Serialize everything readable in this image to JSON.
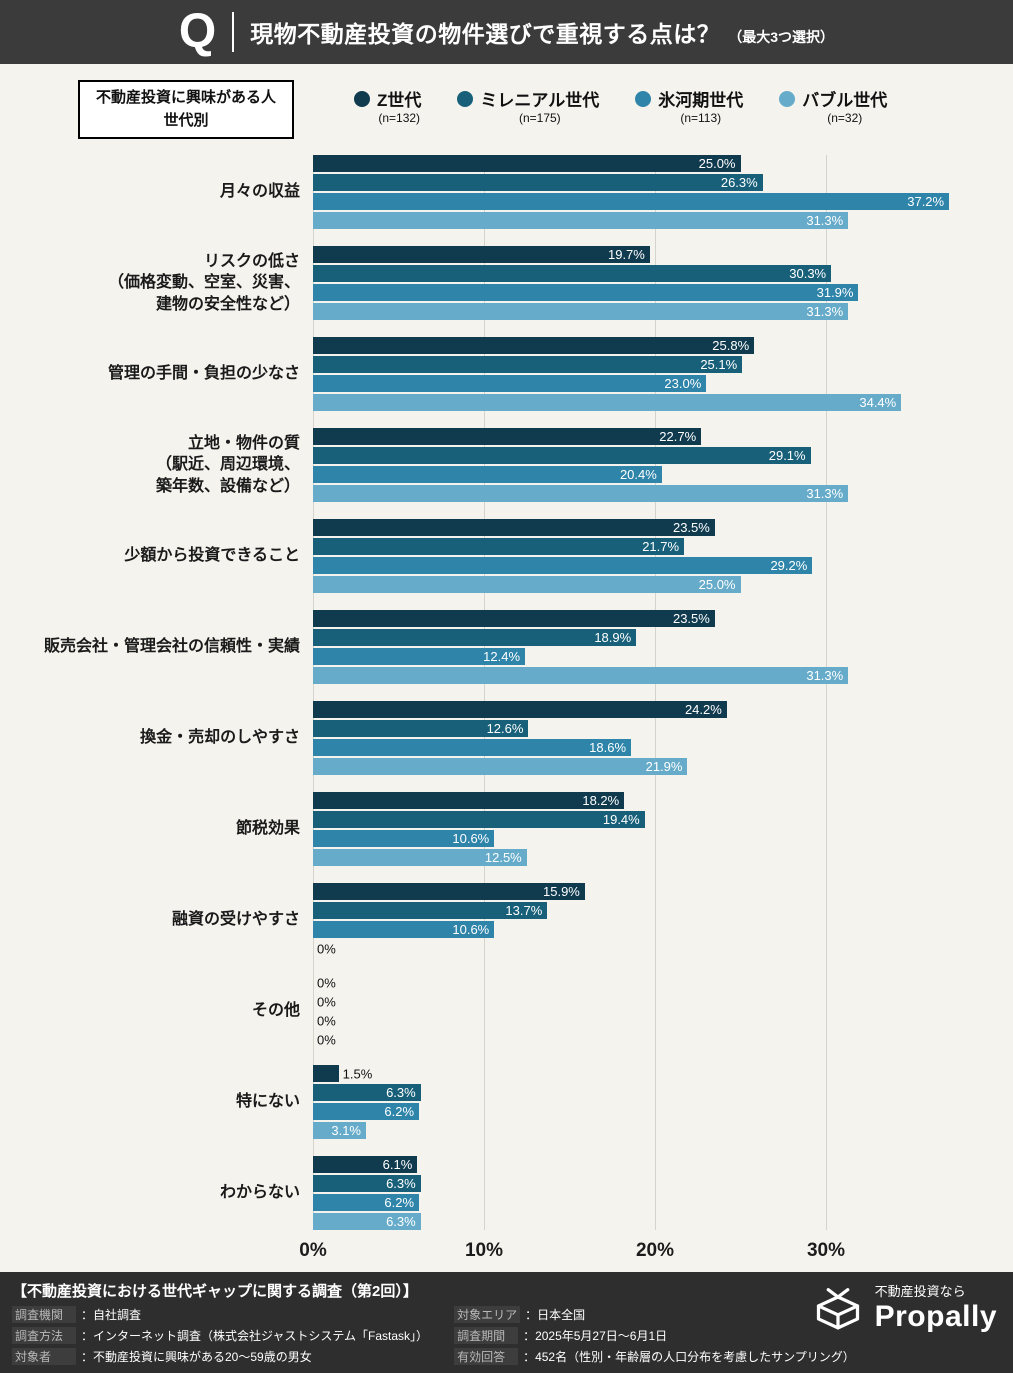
{
  "header": {
    "q_mark": "Q",
    "title": "現物不動産投資の物件選びで重視する点は？",
    "subtitle": "（最大3つ選択）"
  },
  "audience_box": {
    "line1": "不動産投資に興味がある人",
    "line2": "世代別"
  },
  "legend": {
    "items": [
      {
        "label": "Z世代",
        "n": "(n=132)"
      },
      {
        "label": "ミレニアル世代",
        "n": "(n=175)"
      },
      {
        "label": "氷河期世代",
        "n": "(n=113)"
      },
      {
        "label": "バブル世代",
        "n": "(n=32)"
      }
    ]
  },
  "chart_data": {
    "type": "bar",
    "orientation": "horizontal",
    "title": "現物不動産投資の物件選びで重視する点は？（最大3つ選択）",
    "x_axis": {
      "ticks": [
        "0%",
        "10%",
        "20%",
        "30%"
      ],
      "tick_values": [
        0,
        10,
        20,
        30
      ],
      "max": 40,
      "unit": "%"
    },
    "grid": true,
    "series_names": [
      "Z世代",
      "ミレニアル世代",
      "氷河期世代",
      "バブル世代"
    ],
    "series_colors": [
      "#103b4f",
      "#186079",
      "#2e84a9",
      "#66abc9"
    ],
    "categories": [
      {
        "label_lines": [
          "月々の収益"
        ],
        "values": [
          25.0,
          26.3,
          37.2,
          31.3
        ]
      },
      {
        "label_lines": [
          "リスクの低さ",
          "（価格変動、空室、災害、",
          "建物の安全性など）"
        ],
        "values": [
          19.7,
          30.3,
          31.9,
          31.3
        ]
      },
      {
        "label_lines": [
          "管理の手間・負担の少なさ"
        ],
        "values": [
          25.8,
          25.1,
          23.0,
          34.4
        ]
      },
      {
        "label_lines": [
          "立地・物件の質",
          "（駅近、周辺環境、",
          "築年数、設備など）"
        ],
        "values": [
          22.7,
          29.1,
          20.4,
          31.3
        ]
      },
      {
        "label_lines": [
          "少額から投資できること"
        ],
        "values": [
          23.5,
          21.7,
          29.2,
          25.0
        ]
      },
      {
        "label_lines": [
          "販売会社・管理会社の信頼性・実績"
        ],
        "values": [
          23.5,
          18.9,
          12.4,
          31.3
        ]
      },
      {
        "label_lines": [
          "換金・売却のしやすさ"
        ],
        "values": [
          24.2,
          12.6,
          18.6,
          21.9
        ]
      },
      {
        "label_lines": [
          "節税効果"
        ],
        "values": [
          18.2,
          19.4,
          10.6,
          12.5
        ]
      },
      {
        "label_lines": [
          "融資の受けやすさ"
        ],
        "values": [
          15.9,
          13.7,
          10.6,
          0
        ]
      },
      {
        "label_lines": [
          "その他"
        ],
        "values": [
          0,
          0,
          0,
          0
        ]
      },
      {
        "label_lines": [
          "特にない"
        ],
        "values": [
          1.5,
          6.3,
          6.2,
          3.1
        ]
      },
      {
        "label_lines": [
          "わからない"
        ],
        "values": [
          6.1,
          6.3,
          6.2,
          6.3
        ]
      }
    ]
  },
  "footer": {
    "survey_title": "【不動産投資における世代ギャップに関する調査（第2回）】",
    "left_rows": [
      {
        "label": "調査機関",
        "value": "：自社調査"
      },
      {
        "label": "調査方法",
        "value": "：インターネット調査（株式会社ジャストシステム「Fastask」）"
      },
      {
        "label": "対象者",
        "value": "：不動産投資に興味がある20〜59歳の男女"
      }
    ],
    "right_rows": [
      {
        "label": "対象エリア",
        "value": "：日本全国"
      },
      {
        "label": "調査期間",
        "value": "：2025年5月27日〜6月1日"
      },
      {
        "label": "有効回答",
        "value": "：452名（性別・年齢層の人口分布を考慮したサンプリング）"
      }
    ],
    "logo": {
      "tagline": "不動産投資なら",
      "brand": "Propally"
    }
  }
}
